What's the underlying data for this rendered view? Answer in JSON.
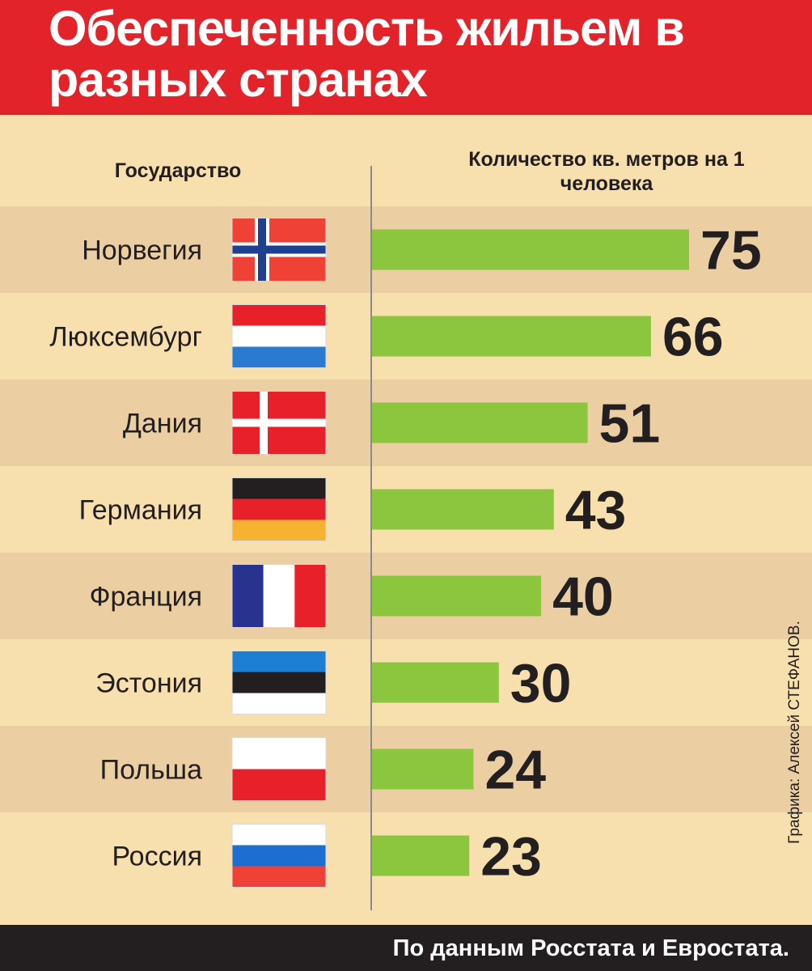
{
  "title": "Обеспеченность жильем в разных странах",
  "headers": {
    "country": "Государство",
    "value": "Количество кв. метров на 1 человека"
  },
  "footer": "По данным Росстата и Евростата.",
  "credit": "Графика: Алексей СТЕФАНОВ.",
  "colors": {
    "title_bg": "#e2232a",
    "background": "#f7dfae",
    "row_stripe": "#ebcfa2",
    "bar": "#8cc63f",
    "text": "#231f20",
    "footer_bg": "#231f20"
  },
  "chart_data": {
    "type": "bar",
    "orientation": "horizontal",
    "categories": [
      "Норвегия",
      "Люксембург",
      "Дания",
      "Германия",
      "Франция",
      "Эстония",
      "Польша",
      "Россия"
    ],
    "values": [
      75,
      66,
      51,
      43,
      40,
      30,
      24,
      23
    ],
    "flags": [
      "norway-flag",
      "luxembourg-flag",
      "denmark-flag",
      "germany-flag",
      "france-flag",
      "estonia-flag",
      "poland-flag",
      "russia-flag"
    ],
    "xlim": [
      0,
      75
    ],
    "grid": false,
    "legend": "none"
  }
}
